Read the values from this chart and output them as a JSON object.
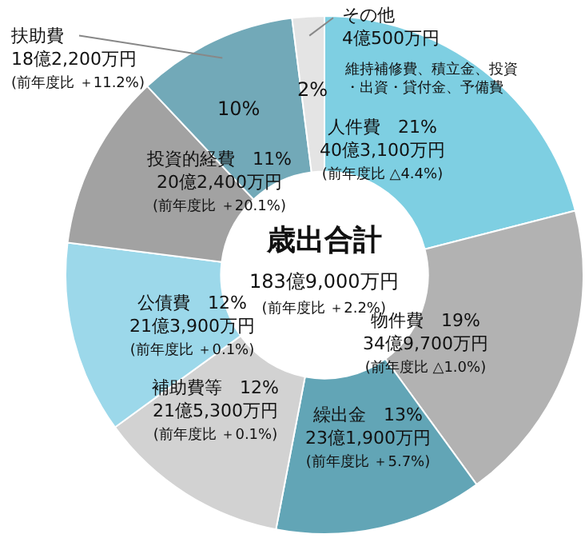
{
  "chart_data": {
    "type": "donut",
    "title": "歳出合計",
    "subtitle": "183億9,000万円\n(前年度比 ＋2.2%)",
    "categories": [
      "人件費",
      "物件費",
      "繰出金",
      "補助費等",
      "公債費",
      "投資的経費",
      "扶助費",
      "その他"
    ],
    "values": [
      21,
      19,
      13,
      12,
      12,
      11,
      10,
      2
    ],
    "annotations": [
      "維持補修費、積立金、投資・出資・貸付金、予備費"
    ],
    "colors": [
      "#7ecfe2",
      "#b2b2b2",
      "#62a5b6",
      "#d2d2d2",
      "#9cd8ea",
      "#a2a2a2",
      "#72a9b8",
      "#e4e4e4"
    ],
    "value_labels": [
      "21%\n40億3,100万円\n(前年度比 △4.4%)",
      "19%\n34億9,700万円\n(前年度比 △1.0%)",
      "13%\n23億1,900万円\n(前年度比 ＋5.7%)",
      "12%\n21億5,300万円\n(前年度比 ＋0.1%)",
      "12%\n21億3,900万円\n(前年度比 ＋0.1%)",
      "11%\n20億2,400万円\n(前年度比 ＋20.1%)",
      "10%\n18億2,200万円\n(前年度比 ＋11.2%)",
      "2%\n4億500万円"
    ]
  }
}
